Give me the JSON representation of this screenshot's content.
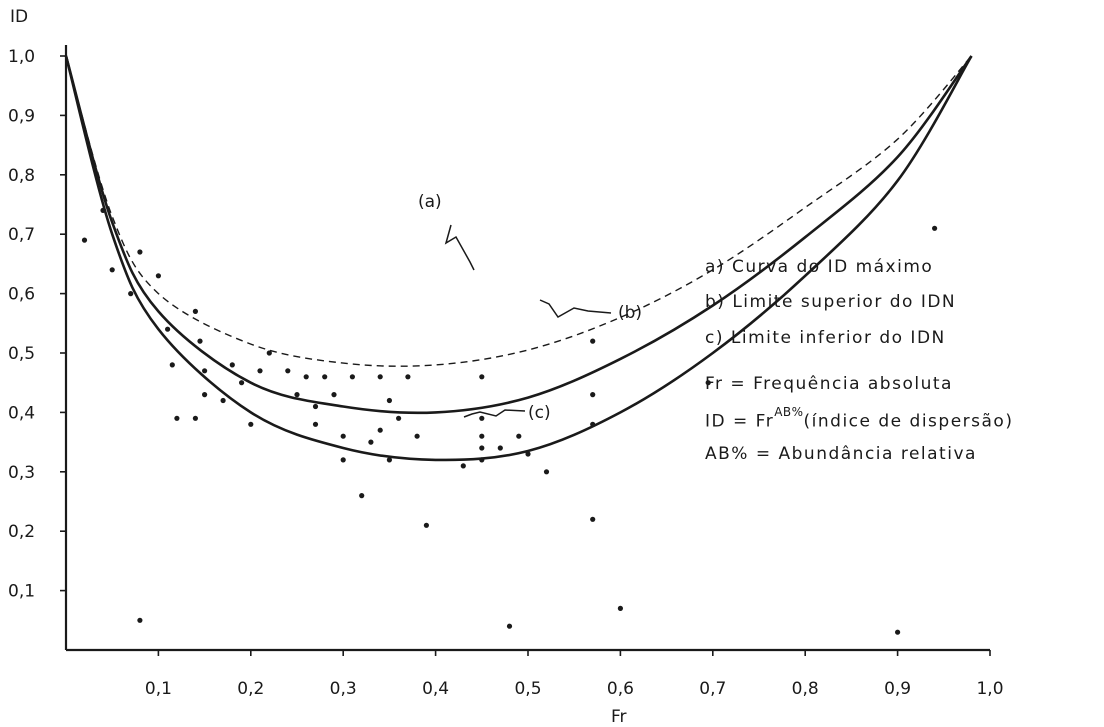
{
  "chart_data": {
    "type": "scatter",
    "xlabel": "Fr",
    "ylabel": "ID",
    "xlim": [
      0,
      1.0
    ],
    "ylim": [
      0,
      1.0
    ],
    "x_ticks": [
      "0,1",
      "0,2",
      "0,3",
      "0,4",
      "0,5",
      "0,6",
      "0,7",
      "0,8",
      "0,9",
      "1,0"
    ],
    "y_ticks": [
      "0,1",
      "0,2",
      "0,3",
      "0,4",
      "0,5",
      "0,6",
      "0,7",
      "0,8",
      "0,9",
      "1,0"
    ],
    "grid": false,
    "curves": [
      {
        "label": "(a)",
        "style": "dashed",
        "points": [
          [
            0.0,
            1.0
          ],
          [
            0.05,
            0.73
          ],
          [
            0.1,
            0.6
          ],
          [
            0.2,
            0.515
          ],
          [
            0.3,
            0.483
          ],
          [
            0.4,
            0.48
          ],
          [
            0.5,
            0.505
          ],
          [
            0.6,
            0.56
          ],
          [
            0.7,
            0.64
          ],
          [
            0.8,
            0.745
          ],
          [
            0.9,
            0.86
          ],
          [
            0.98,
            1.0
          ]
        ]
      },
      {
        "label": "(b)",
        "style": "solid",
        "points": [
          [
            0.0,
            1.0
          ],
          [
            0.05,
            0.72
          ],
          [
            0.1,
            0.57
          ],
          [
            0.2,
            0.45
          ],
          [
            0.3,
            0.41
          ],
          [
            0.4,
            0.4
          ],
          [
            0.5,
            0.425
          ],
          [
            0.6,
            0.49
          ],
          [
            0.7,
            0.58
          ],
          [
            0.8,
            0.695
          ],
          [
            0.9,
            0.83
          ],
          [
            0.98,
            1.0
          ]
        ]
      },
      {
        "label": "(c)",
        "style": "solid",
        "points": [
          [
            0.0,
            1.0
          ],
          [
            0.05,
            0.7
          ],
          [
            0.1,
            0.54
          ],
          [
            0.2,
            0.4
          ],
          [
            0.3,
            0.34
          ],
          [
            0.4,
            0.32
          ],
          [
            0.5,
            0.335
          ],
          [
            0.6,
            0.4
          ],
          [
            0.7,
            0.5
          ],
          [
            0.8,
            0.63
          ],
          [
            0.9,
            0.79
          ],
          [
            0.98,
            1.0
          ]
        ]
      }
    ],
    "points": [
      [
        0.02,
        0.69
      ],
      [
        0.04,
        0.74
      ],
      [
        0.05,
        0.64
      ],
      [
        0.07,
        0.6
      ],
      [
        0.08,
        0.67
      ],
      [
        0.1,
        0.63
      ],
      [
        0.11,
        0.54
      ],
      [
        0.115,
        0.48
      ],
      [
        0.12,
        0.39
      ],
      [
        0.14,
        0.57
      ],
      [
        0.145,
        0.52
      ],
      [
        0.15,
        0.47
      ],
      [
        0.15,
        0.43
      ],
      [
        0.14,
        0.39
      ],
      [
        0.17,
        0.42
      ],
      [
        0.18,
        0.48
      ],
      [
        0.19,
        0.45
      ],
      [
        0.2,
        0.38
      ],
      [
        0.21,
        0.47
      ],
      [
        0.22,
        0.5
      ],
      [
        0.24,
        0.47
      ],
      [
        0.25,
        0.43
      ],
      [
        0.26,
        0.46
      ],
      [
        0.27,
        0.41
      ],
      [
        0.27,
        0.38
      ],
      [
        0.28,
        0.46
      ],
      [
        0.29,
        0.43
      ],
      [
        0.3,
        0.36
      ],
      [
        0.3,
        0.32
      ],
      [
        0.31,
        0.46
      ],
      [
        0.32,
        0.26
      ],
      [
        0.33,
        0.35
      ],
      [
        0.34,
        0.46
      ],
      [
        0.34,
        0.37
      ],
      [
        0.35,
        0.32
      ],
      [
        0.35,
        0.42
      ],
      [
        0.36,
        0.39
      ],
      [
        0.37,
        0.46
      ],
      [
        0.38,
        0.36
      ],
      [
        0.39,
        0.21
      ],
      [
        0.43,
        0.31
      ],
      [
        0.45,
        0.46
      ],
      [
        0.45,
        0.39
      ],
      [
        0.45,
        0.36
      ],
      [
        0.45,
        0.34
      ],
      [
        0.45,
        0.32
      ],
      [
        0.47,
        0.34
      ],
      [
        0.48,
        0.04
      ],
      [
        0.49,
        0.36
      ],
      [
        0.5,
        0.33
      ],
      [
        0.52,
        0.3
      ],
      [
        0.57,
        0.52
      ],
      [
        0.57,
        0.43
      ],
      [
        0.57,
        0.38
      ],
      [
        0.57,
        0.22
      ],
      [
        0.6,
        0.07
      ],
      [
        0.695,
        0.45
      ],
      [
        0.08,
        0.05
      ],
      [
        0.9,
        0.03
      ],
      [
        0.94,
        0.71
      ]
    ]
  },
  "annotations": {
    "label_a": "(a)",
    "label_b": "(b)",
    "label_c": "(c)"
  },
  "legend": {
    "a": "a) Curva do ID máximo",
    "b": "b) Limite superior do IDN",
    "c": "c) Limite inferior do IDN",
    "fr": "Fr = Frequência absoluta",
    "id_prefix": "ID = Fr",
    "id_sup": "AB%",
    "id_suffix": "(índice de dispersão)",
    "ab": "AB% = Abundância relativa"
  }
}
